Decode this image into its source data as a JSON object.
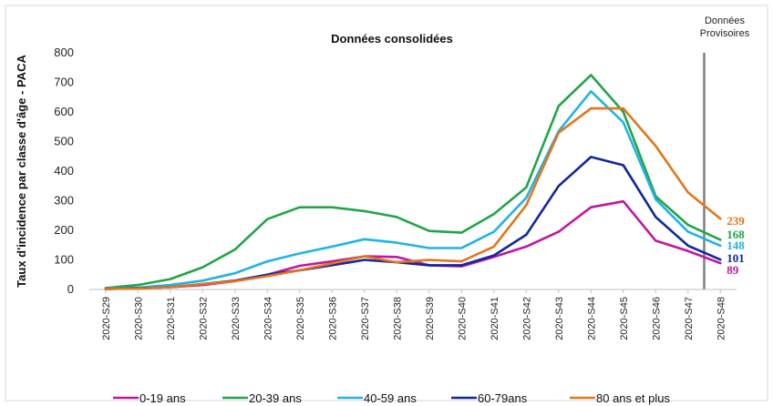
{
  "chart_data": {
    "type": "line",
    "title": "Données consolidées",
    "ylabel": "Taux d'incidence par classe d'âge - PACA",
    "xlabel": "",
    "ylim": [
      0,
      800
    ],
    "yticks": [
      0,
      100,
      200,
      300,
      400,
      500,
      600,
      700,
      800
    ],
    "grid": false,
    "legend_position": "bottom",
    "provisional_label": [
      "Données",
      "Provisoires"
    ],
    "provisional_from": "2020-S47",
    "categories": [
      "2020-S29",
      "2020-S30",
      "2020-S31",
      "2020-S32",
      "2020-S33",
      "2020-S34",
      "2020-S35",
      "2020-S36",
      "2020-S37",
      "2020-S38",
      "2020-S39",
      "2020-S40",
      "2020-S41",
      "2020-S42",
      "2020-S43",
      "2020-S44",
      "2020-S45",
      "2020-S46",
      "2020-S47",
      "2020-S48"
    ],
    "series": [
      {
        "name": "0-19 ans",
        "color": "#c0179f",
        "end_label": "89",
        "values": [
          2,
          4,
          8,
          15,
          28,
          50,
          80,
          95,
          112,
          110,
          82,
          78,
          110,
          145,
          195,
          278,
          298,
          165,
          130,
          89
        ]
      },
      {
        "name": "20-39 ans",
        "color": "#21a548",
        "end_label": "168",
        "values": [
          5,
          15,
          35,
          75,
          135,
          238,
          278,
          278,
          265,
          245,
          198,
          192,
          255,
          345,
          620,
          725,
          600,
          315,
          218,
          168
        ]
      },
      {
        "name": "40-59 ans",
        "color": "#21b3e4",
        "end_label": "148",
        "values": [
          3,
          6,
          15,
          30,
          55,
          95,
          122,
          145,
          170,
          158,
          140,
          140,
          195,
          310,
          535,
          670,
          565,
          305,
          195,
          148
        ]
      },
      {
        "name": "60-79ans",
        "color": "#10289e",
        "end_label": "101",
        "values": [
          2,
          4,
          8,
          18,
          30,
          50,
          65,
          82,
          100,
          92,
          82,
          82,
          115,
          185,
          350,
          448,
          420,
          245,
          148,
          101
        ]
      },
      {
        "name": "80 ans et plus",
        "color": "#e2761c",
        "end_label": "239",
        "values": [
          2,
          3,
          8,
          18,
          28,
          45,
          65,
          88,
          112,
          92,
          100,
          95,
          145,
          285,
          530,
          612,
          612,
          485,
          328,
          239
        ]
      }
    ]
  }
}
